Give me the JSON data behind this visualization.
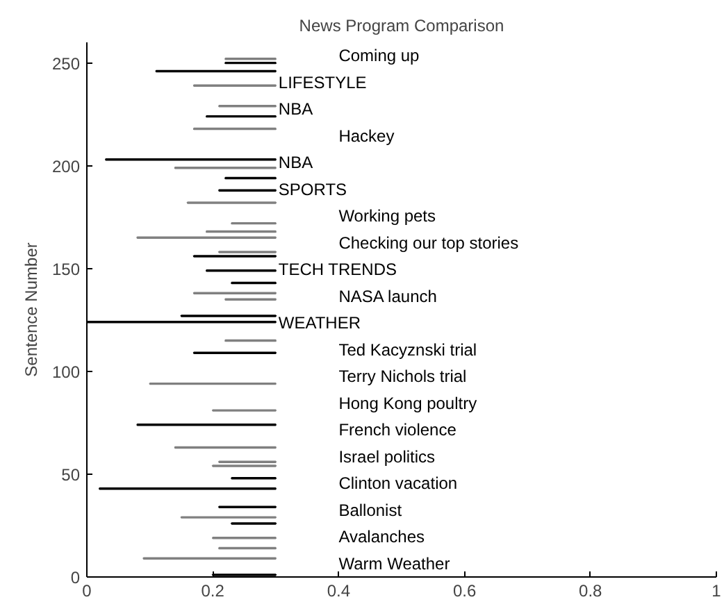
{
  "chart_data": {
    "type": "bar",
    "orientation": "horizontal",
    "title": "News Program Comparison",
    "ylabel": "Sentence Number",
    "x": [
      252,
      250,
      246,
      239,
      229,
      224,
      218,
      203,
      199,
      194,
      188,
      182,
      172,
      168,
      165,
      158,
      156,
      149,
      143,
      138,
      135,
      127,
      124,
      115,
      109,
      94,
      81,
      74,
      63,
      56,
      54,
      48,
      43,
      34,
      29,
      26,
      19,
      14,
      9,
      1
    ],
    "base": [
      0.22,
      0.22,
      0.11,
      0.17,
      0.21,
      0.19,
      0.17,
      0.03,
      0.14,
      0.22,
      0.21,
      0.16,
      0.23,
      0.19,
      0.08,
      0.21,
      0.17,
      0.19,
      0.23,
      0.17,
      0.22,
      0.15,
      0.0,
      0.22,
      0.17,
      0.1,
      0.2,
      0.08,
      0.14,
      0.21,
      0.2,
      0.23,
      0.02,
      0.21,
      0.15,
      0.23,
      0.2,
      0.21,
      0.09,
      0.2
    ],
    "values": [
      0.08,
      0.08,
      0.19,
      0.13,
      0.09,
      0.11,
      0.13,
      0.27,
      0.16,
      0.08,
      0.09,
      0.14,
      0.07,
      0.11,
      0.22,
      0.09,
      0.13,
      0.11,
      0.07,
      0.13,
      0.08,
      0.15,
      0.3,
      0.08,
      0.13,
      0.2,
      0.1,
      0.22,
      0.16,
      0.09,
      0.1,
      0.07,
      0.28,
      0.09,
      0.15,
      0.07,
      0.1,
      0.09,
      0.21,
      0.1
    ],
    "colors": [
      "#808080",
      "#000000",
      "#000000",
      "#808080",
      "#808080",
      "#000000",
      "#808080",
      "#000000",
      "#808080",
      "#000000",
      "#000000",
      "#808080",
      "#808080",
      "#808080",
      "#808080",
      "#808080",
      "#000000",
      "#000000",
      "#000000",
      "#808080",
      "#808080",
      "#000000",
      "#000000",
      "#808080",
      "#000000",
      "#808080",
      "#808080",
      "#000000",
      "#808080",
      "#808080",
      "#808080",
      "#000000",
      "#000000",
      "#000000",
      "#808080",
      "#000000",
      "#808080",
      "#808080",
      "#808080",
      "#000000"
    ],
    "xlim": [
      0,
      1
    ],
    "xticks": [
      0,
      0.2,
      0.4,
      0.6,
      0.8,
      1
    ],
    "ylim": [
      0,
      260
    ],
    "yticks": [
      0,
      50,
      100,
      150,
      200,
      250
    ],
    "grid": false,
    "annotations": [
      "Coming up",
      "LIFESTYLE",
      "NBA",
      "Hackey",
      "NBA",
      "SPORTS",
      "Working pets",
      "Checking our top stories",
      "TECH TRENDS",
      "NASA launch",
      "WEATHER",
      "Ted Kacyznski trial",
      "Terry Nichols trial",
      "Hong Kong poultry",
      "French violence",
      "Israel politics",
      "Clinton vacation",
      "Ballonist",
      "Avalanches",
      "Warm Weather"
    ]
  }
}
